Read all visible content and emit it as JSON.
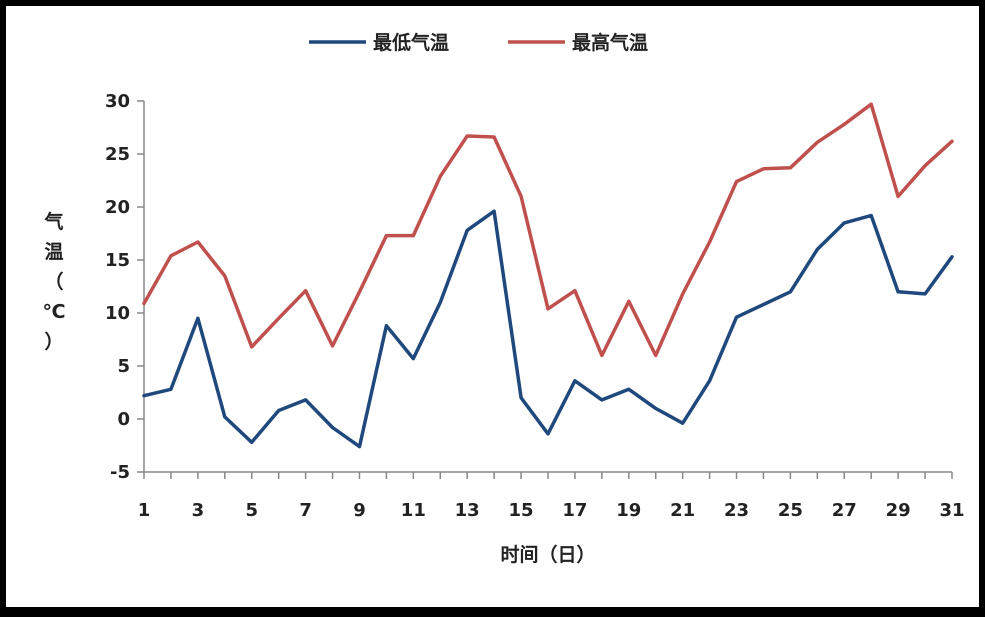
{
  "chart_data": {
    "type": "line",
    "xlabel": "时间（日）",
    "ylabel": "气温（℃）",
    "ylim": [
      -5,
      30
    ],
    "yticks": [
      -5,
      0,
      5,
      10,
      15,
      20,
      25,
      30
    ],
    "xlim": [
      1,
      31
    ],
    "xticks": [
      1,
      3,
      5,
      7,
      9,
      11,
      13,
      15,
      17,
      19,
      21,
      23,
      25,
      27,
      29,
      31
    ],
    "grid": false,
    "legend_position": "top-center",
    "x": [
      1,
      2,
      3,
      4,
      5,
      6,
      7,
      8,
      9,
      10,
      11,
      12,
      13,
      14,
      15,
      16,
      17,
      18,
      19,
      20,
      21,
      22,
      23,
      24,
      25,
      26,
      27,
      28,
      29,
      30,
      31
    ],
    "series": [
      {
        "name": "最低气温",
        "color": "#1F497D",
        "values": [
          2.2,
          2.8,
          9.5,
          0.2,
          -2.2,
          0.8,
          1.8,
          -0.8,
          -2.6,
          8.8,
          5.7,
          11.0,
          17.8,
          19.6,
          2.0,
          -1.4,
          3.6,
          1.8,
          2.8,
          1.0,
          -0.4,
          3.6,
          9.6,
          10.8,
          12.0,
          16.0,
          18.5,
          19.2,
          12.0,
          11.8,
          15.3
        ]
      },
      {
        "name": "最高气温",
        "color": "#C0504D",
        "values": [
          10.9,
          15.4,
          16.7,
          13.5,
          6.8,
          9.5,
          12.1,
          6.9,
          12.0,
          17.3,
          17.3,
          22.9,
          26.7,
          26.6,
          21.0,
          10.4,
          12.1,
          6.0,
          11.1,
          6.0,
          11.8,
          16.7,
          22.4,
          23.6,
          23.7,
          26.1,
          27.8,
          29.7,
          21.0,
          23.9,
          26.2
        ]
      }
    ]
  }
}
